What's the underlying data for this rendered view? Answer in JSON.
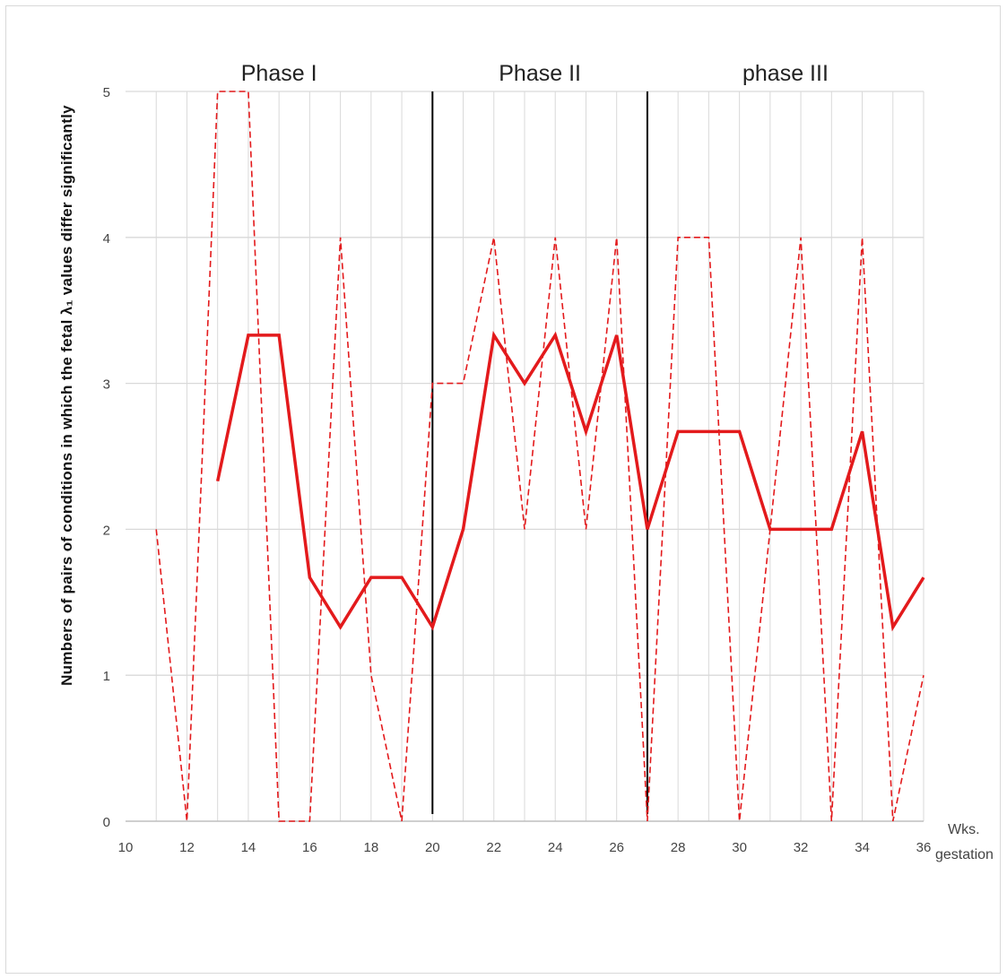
{
  "chart_data": {
    "type": "line",
    "ylabel": "Numbers of pairs of conditions in which the fetal λ₁ values  differ significantly",
    "xunit_line1": "Wks.",
    "xunit_line2": "gestation",
    "xlim": [
      10,
      36
    ],
    "ylim": [
      0,
      5
    ],
    "x_ticks": [
      "10",
      "12",
      "14",
      "16",
      "18",
      "20",
      "22",
      "24",
      "26",
      "28",
      "30",
      "32",
      "34",
      "36"
    ],
    "y_ticks": [
      "0",
      "1",
      "2",
      "3",
      "4",
      "5"
    ],
    "grid": true,
    "phases": [
      {
        "label": "Phase I"
      },
      {
        "label": "Phase II"
      },
      {
        "label": "phase III"
      }
    ],
    "phase_dividers": [
      20,
      27
    ],
    "series": [
      {
        "style": "solid",
        "color": "#e31a1c",
        "x": [
          13,
          14,
          15,
          16,
          17,
          18,
          19,
          20,
          21,
          22,
          23,
          24,
          25,
          26,
          27,
          28,
          29,
          30,
          31,
          32,
          33,
          34,
          35,
          36
        ],
        "y": [
          2.33,
          3.33,
          3.33,
          1.67,
          1.33,
          1.67,
          1.67,
          1.33,
          2,
          3.33,
          3,
          3.33,
          2.67,
          3.33,
          2,
          2.67,
          2.67,
          2.67,
          2,
          2,
          2,
          2.67,
          1.33,
          1.67
        ]
      },
      {
        "style": "dashed",
        "color": "#e31a1c",
        "x": [
          11,
          12,
          13,
          14,
          15,
          16,
          17,
          18,
          19,
          20,
          21,
          22,
          23,
          24,
          25,
          26,
          27,
          28,
          29,
          30,
          31,
          32,
          33,
          34,
          35,
          36
        ],
        "y": [
          2,
          0,
          5,
          5,
          0,
          0,
          4,
          1,
          0,
          3,
          3,
          4,
          2,
          4,
          2,
          4,
          0,
          4,
          4,
          0,
          2,
          4,
          0,
          4,
          0,
          1
        ]
      }
    ]
  }
}
